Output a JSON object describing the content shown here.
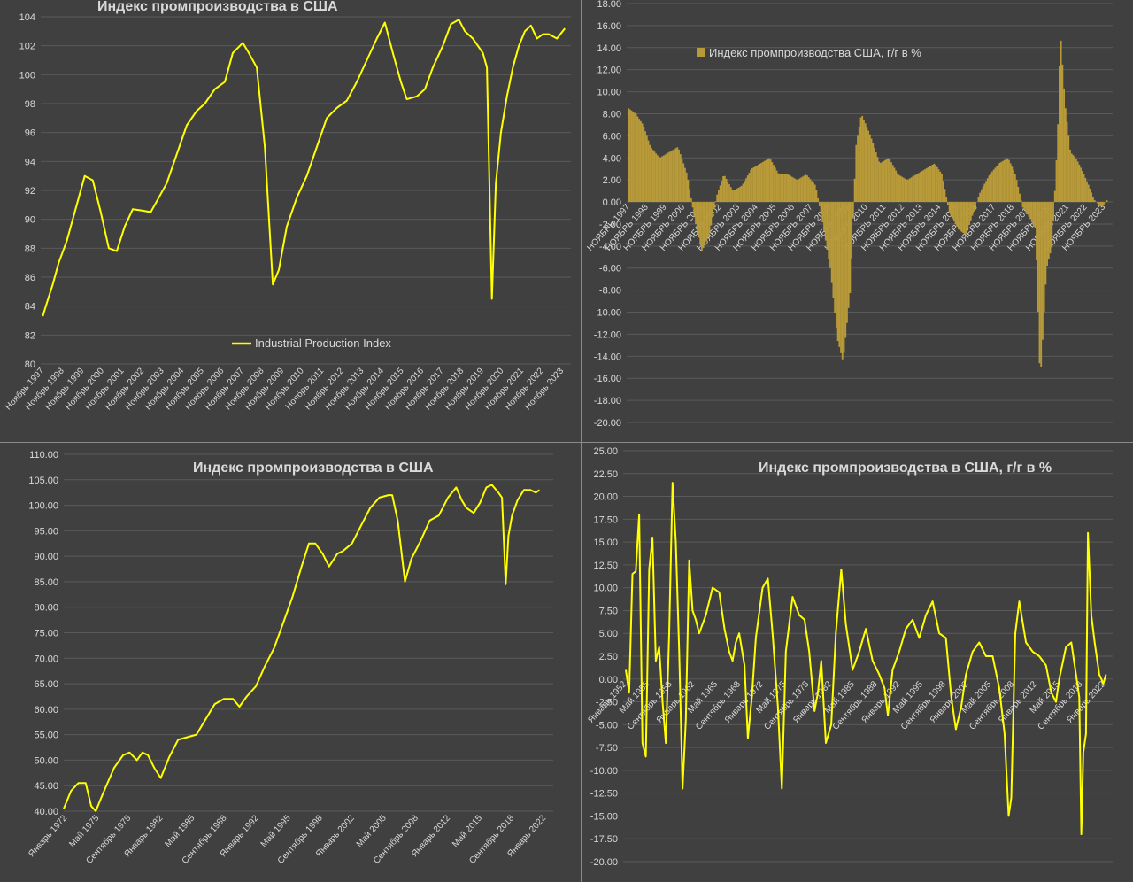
{
  "colors": {
    "line": "#ffff00",
    "bar": "#b89a38",
    "grid": "#5a5a5a",
    "text": "#d9d9d9",
    "background": "#404040"
  },
  "chart_data": [
    {
      "id": "c1",
      "type": "line",
      "title": "Индекс промпроизводства в США",
      "legend": "Industrial Production Index",
      "legend_position": "bottom-center",
      "grid": true,
      "ylim": [
        80,
        104
      ],
      "yticks": [
        "80",
        "82",
        "84",
        "86",
        "88",
        "90",
        "92",
        "94",
        "96",
        "98",
        "100",
        "102",
        "104"
      ],
      "x_tick_labels": [
        "Ноябрь 1997",
        "Ноябрь 1998",
        "Ноябрь 1999",
        "Ноябрь 2000",
        "Ноябрь 2001",
        "Ноябрь 2002",
        "Ноябрь 2003",
        "Ноябрь 2004",
        "Ноябрь 2005",
        "Ноябрь 2006",
        "Ноябрь 2007",
        "Ноябрь 2008",
        "Ноябрь 2009",
        "Ноябрь 2010",
        "Ноябрь 2011",
        "Ноябрь 2012",
        "Ноябрь 2013",
        "Ноябрь 2014",
        "Ноябрь 2015",
        "Ноябрь 2016",
        "Ноябрь 2017",
        "Ноябрь 2018",
        "Ноябрь 2019",
        "Ноябрь 2020",
        "Ноябрь 2021",
        "Ноябрь 2022",
        "Ноябрь 2023"
      ],
      "x": [
        1997.8,
        1998.0,
        1998.3,
        1998.6,
        1999.0,
        1999.5,
        1999.9,
        2000.3,
        2000.7,
        2001.1,
        2001.5,
        2001.9,
        2002.3,
        2002.8,
        2003.2,
        2003.6,
        2004.0,
        2004.5,
        2005.0,
        2005.5,
        2005.9,
        2006.4,
        2006.9,
        2007.3,
        2007.8,
        2008.1,
        2008.5,
        2008.9,
        2009.3,
        2009.6,
        2010.0,
        2010.5,
        2011.0,
        2011.5,
        2012.0,
        2012.5,
        2013.0,
        2013.5,
        2014.0,
        2014.5,
        2014.9,
        2015.3,
        2015.7,
        2016.0,
        2016.5,
        2016.9,
        2017.3,
        2017.8,
        2018.2,
        2018.6,
        2018.9,
        2019.3,
        2019.8,
        2020.0,
        2020.25,
        2020.45,
        2020.7,
        2021.0,
        2021.3,
        2021.6,
        2021.9,
        2022.2,
        2022.5,
        2022.8,
        2023.1,
        2023.5,
        2023.9
      ],
      "y": [
        83.3,
        84.2,
        85.5,
        87.0,
        88.5,
        91.0,
        93.0,
        92.7,
        90.5,
        88.0,
        87.8,
        89.5,
        90.7,
        90.6,
        90.5,
        91.5,
        92.5,
        94.5,
        96.5,
        97.5,
        98.0,
        99.0,
        99.5,
        101.5,
        102.2,
        101.5,
        100.5,
        95.0,
        85.5,
        86.5,
        89.5,
        91.5,
        93.0,
        95.0,
        97.0,
        97.7,
        98.2,
        99.5,
        101.0,
        102.5,
        103.6,
        101.5,
        99.5,
        98.3,
        98.5,
        99.0,
        100.5,
        102.0,
        103.5,
        103.8,
        103.0,
        102.5,
        101.5,
        100.5,
        84.5,
        92.5,
        96.0,
        98.5,
        100.5,
        102.0,
        103.0,
        103.4,
        102.5,
        102.8,
        102.8,
        102.5,
        103.2
      ],
      "xlim": [
        1997.7,
        2024.2
      ]
    },
    {
      "id": "c2",
      "type": "bar",
      "legend": "Индекс промпроизводства США, г/г в %",
      "legend_position": "top-left",
      "grid": true,
      "ylim": [
        -20,
        18
      ],
      "yticks": [
        "-20.00",
        "-18.00",
        "-16.00",
        "-14.00",
        "-12.00",
        "-10.00",
        "-8.00",
        "-6.00",
        "-4.00",
        "-2.00",
        "0.00",
        "2.00",
        "4.00",
        "6.00",
        "8.00",
        "10.00",
        "12.00",
        "14.00",
        "16.00",
        "18.00"
      ],
      "x_tick_labels": [
        "НОЯБРЬ 1997",
        "НОЯБРЬ 1998",
        "НОЯБРЬ 1999",
        "НОЯБРЬ 2000",
        "НОЯБРЬ 2001",
        "НОЯБРЬ 2002",
        "НОЯБРЬ 2003",
        "НОЯБРЬ 2004",
        "НОЯБРЬ 2005",
        "НОЯБРЬ 2006",
        "НОЯБРЬ 2007",
        "НОЯБРЬ 2008",
        "НОЯБРЬ 2009",
        "НОЯБРЬ 2010",
        "НОЯБРЬ 2011",
        "НОЯБРЬ 2012",
        "НОЯБРЬ 2013",
        "НОЯБРЬ 2014",
        "НОЯБРЬ 2015",
        "НОЯБРЬ 2016",
        "НОЯБРЬ 2017",
        "НОЯБРЬ 2018",
        "НОЯБРЬ 2019",
        "НОЯБРЬ 2020",
        "НОЯБРЬ 2021",
        "НОЯБРЬ 2022",
        "НОЯБРЬ 2023"
      ],
      "x": [
        1997.8,
        1998.2,
        1998.6,
        1999.0,
        1999.5,
        2000.0,
        2000.5,
        2001.0,
        2001.4,
        2001.8,
        2002.2,
        2002.6,
        2003.0,
        2003.5,
        2004.0,
        2004.5,
        2005.0,
        2005.5,
        2006.0,
        2006.5,
        2007.0,
        2007.5,
        2008.0,
        2008.4,
        2008.8,
        2009.2,
        2009.5,
        2009.9,
        2010.2,
        2010.5,
        2011.0,
        2011.5,
        2012.0,
        2012.5,
        2013.0,
        2013.5,
        2014.0,
        2014.5,
        2014.9,
        2015.3,
        2015.8,
        2016.2,
        2016.6,
        2017.0,
        2017.5,
        2018.0,
        2018.5,
        2018.9,
        2019.3,
        2019.7,
        2020.0,
        2020.25,
        2020.4,
        2020.6,
        2020.9,
        2021.2,
        2021.35,
        2021.6,
        2021.9,
        2022.2,
        2022.5,
        2022.9,
        2023.2,
        2023.6,
        2023.9
      ],
      "y": [
        8.5,
        8.0,
        7.0,
        5.0,
        4.0,
        4.5,
        5.0,
        2.5,
        -1.5,
        -4.5,
        -3.0,
        0.5,
        2.5,
        1.0,
        1.5,
        3.0,
        3.5,
        4.0,
        2.5,
        2.5,
        2.0,
        2.5,
        1.5,
        -2.0,
        -6.0,
        -12.5,
        -14.5,
        -8.0,
        5.0,
        8.0,
        6.0,
        3.5,
        4.0,
        2.5,
        2.0,
        2.5,
        3.0,
        3.5,
        2.5,
        -1.0,
        -2.5,
        -3.0,
        -1.0,
        1.0,
        2.5,
        3.5,
        4.0,
        2.5,
        -0.5,
        -1.5,
        -2.5,
        -16.5,
        -12.0,
        -6.0,
        -4.0,
        6.0,
        15.5,
        9.0,
        4.5,
        4.0,
        3.0,
        1.5,
        0.2,
        -0.5,
        0.2
      ],
      "xlim": [
        1997.7,
        2024.2
      ]
    },
    {
      "id": "c3",
      "type": "line",
      "title": "Индекс промпроизводства в США",
      "grid": true,
      "ylim": [
        40,
        110
      ],
      "yticks": [
        "40.00",
        "45.00",
        "50.00",
        "55.00",
        "60.00",
        "65.00",
        "70.00",
        "75.00",
        "80.00",
        "85.00",
        "90.00",
        "95.00",
        "100.00",
        "105.00",
        "110.00"
      ],
      "x_tick_labels": [
        "Январь 1972",
        "Май 1975",
        "Сентябрь 1978",
        "Январь 1982",
        "Май 1985",
        "Сентябрь 1988",
        "Январь 1992",
        "Май 1995",
        "Сентябрь 1998",
        "Январь 2002",
        "Май 2005",
        "Сентябрь 2008",
        "Январь 2012",
        "Май 2015",
        "Сентябрь 2018",
        "Январь 2022"
      ],
      "x": [
        1972.0,
        1972.8,
        1973.6,
        1974.4,
        1975.0,
        1975.5,
        1976.3,
        1977.5,
        1978.5,
        1979.2,
        1980.0,
        1980.6,
        1981.2,
        1981.9,
        1982.6,
        1983.5,
        1984.5,
        1985.5,
        1986.5,
        1987.5,
        1988.5,
        1989.5,
        1990.5,
        1991.2,
        1992.0,
        1993.0,
        1994.0,
        1995.0,
        1996.0,
        1997.0,
        1998.0,
        1998.8,
        1999.5,
        2000.3,
        2001.0,
        2001.9,
        2002.5,
        2003.5,
        2004.5,
        2005.5,
        2006.5,
        2007.5,
        2007.9,
        2008.5,
        2009.3,
        2010.0,
        2011.0,
        2012.0,
        2013.0,
        2014.0,
        2014.9,
        2015.5,
        2016.0,
        2016.8,
        2017.5,
        2018.2,
        2018.8,
        2019.5,
        2019.9,
        2020.3,
        2020.6,
        2021.0,
        2021.6,
        2022.3,
        2023.0,
        2023.6,
        2024.0
      ],
      "y": [
        40.5,
        44.0,
        45.5,
        45.5,
        41.0,
        40.0,
        43.5,
        48.5,
        51.0,
        51.5,
        50.0,
        51.5,
        51.0,
        48.5,
        46.5,
        50.5,
        54.0,
        54.5,
        55.0,
        58.0,
        61.0,
        62.0,
        62.0,
        60.5,
        62.5,
        64.5,
        68.5,
        72.0,
        77.0,
        82.0,
        88.0,
        92.5,
        92.5,
        90.5,
        88.0,
        90.5,
        91.0,
        92.5,
        96.0,
        99.5,
        101.5,
        102.0,
        102.0,
        97.0,
        85.0,
        89.5,
        93.0,
        97.0,
        98.0,
        101.5,
        103.5,
        101.0,
        99.5,
        98.5,
        100.5,
        103.5,
        104.0,
        102.5,
        101.5,
        84.5,
        94.0,
        98.0,
        101.0,
        103.0,
        103.0,
        102.5,
        103.0
      ],
      "xlim": [
        1972.0,
        2025.5
      ]
    },
    {
      "id": "c4",
      "type": "line",
      "title": "Индекс промпроизводства в США, г/г в %",
      "grid": true,
      "ylim": [
        -20,
        25
      ],
      "yticks": [
        "-20.00",
        "-17.50",
        "-15.00",
        "-12.50",
        "-10.00",
        "-7.50",
        "-5.00",
        "-2.50",
        "0.00",
        "2.50",
        "5.00",
        "7.50",
        "10.00",
        "12.50",
        "15.00",
        "17.50",
        "20.00",
        "22.50",
        "25.00"
      ],
      "x_tick_labels": [
        "Январь 1952",
        "Май 1955",
        "Сентябрь 1958",
        "Январь 1962",
        "Май 1965",
        "Сентябрь 1968",
        "Январь 1972",
        "Май 1975",
        "Сентябрь 1978",
        "Январь 1982",
        "Май 1985",
        "Сентябрь 1988",
        "Январь 1992",
        "Май 1995",
        "Сентябрь 1998",
        "Январь 2002",
        "Май 2005",
        "Сентябрь 2008",
        "Январь 2012",
        "Май 2015",
        "Сентябрь 2018",
        "Январь 2022"
      ],
      "x": [
        1952.0,
        1952.5,
        1953.0,
        1953.5,
        1954.0,
        1954.5,
        1955.0,
        1955.5,
        1956.0,
        1956.5,
        1957.0,
        1957.5,
        1958.0,
        1958.5,
        1959.0,
        1959.5,
        1960.0,
        1960.5,
        1961.0,
        1961.5,
        1962.0,
        1962.5,
        1963.0,
        1964.0,
        1965.0,
        1966.0,
        1966.8,
        1967.5,
        1968.0,
        1968.5,
        1969.0,
        1969.8,
        1970.3,
        1970.9,
        1971.5,
        1972.5,
        1973.3,
        1974.0,
        1974.8,
        1975.4,
        1976.0,
        1977.0,
        1978.0,
        1978.8,
        1979.5,
        1980.3,
        1980.8,
        1981.3,
        1982.0,
        1982.8,
        1983.5,
        1984.3,
        1985.0,
        1986.0,
        1987.0,
        1988.0,
        1989.0,
        1990.0,
        1990.8,
        1991.3,
        1992.0,
        1993.0,
        1994.0,
        1995.0,
        1996.0,
        1997.0,
        1998.0,
        1999.0,
        2000.0,
        2000.8,
        2001.5,
        2002.3,
        2003.0,
        2004.0,
        2005.0,
        2006.0,
        2007.0,
        2008.0,
        2008.8,
        2009.4,
        2009.8,
        2010.4,
        2011.0,
        2012.0,
        2013.0,
        2014.0,
        2015.0,
        2015.8,
        2016.5,
        2017.0,
        2018.0,
        2018.8,
        2019.5,
        2020.0,
        2020.3,
        2020.6,
        2021.0,
        2021.3,
        2021.8,
        2022.3,
        2023.0,
        2023.6,
        2024.0
      ],
      "y": [
        1.0,
        -1.5,
        11.5,
        11.8,
        18.0,
        -7.0,
        -8.5,
        12.0,
        15.5,
        2.0,
        3.5,
        -2.5,
        -7.0,
        5.0,
        21.5,
        15.0,
        3.0,
        -12.0,
        -4.5,
        13.0,
        7.5,
        6.5,
        5.0,
        7.0,
        10.0,
        9.5,
        5.5,
        3.0,
        2.0,
        4.0,
        5.0,
        1.5,
        -6.5,
        -2.0,
        4.5,
        10.0,
        11.0,
        5.0,
        -3.0,
        -12.0,
        3.0,
        9.0,
        7.0,
        6.5,
        3.0,
        -3.5,
        -1.5,
        2.0,
        -7.0,
        -5.0,
        5.0,
        12.0,
        6.0,
        1.0,
        3.0,
        5.5,
        2.0,
        0.5,
        -1.0,
        -4.0,
        1.0,
        3.0,
        5.5,
        6.5,
        4.5,
        7.0,
        8.5,
        5.0,
        4.5,
        -2.0,
        -5.5,
        -3.0,
        0.5,
        3.0,
        4.0,
        2.5,
        2.5,
        -1.0,
        -6.0,
        -15.0,
        -13.0,
        5.0,
        8.5,
        4.0,
        3.0,
        2.5,
        1.5,
        -1.5,
        -2.5,
        0.0,
        3.5,
        4.0,
        0.5,
        -2.0,
        -17.0,
        -8.0,
        -6.0,
        16.0,
        7.0,
        4.0,
        0.5,
        -0.5,
        0.5
      ],
      "xlim": [
        1951.6,
        2025.0
      ]
    }
  ]
}
